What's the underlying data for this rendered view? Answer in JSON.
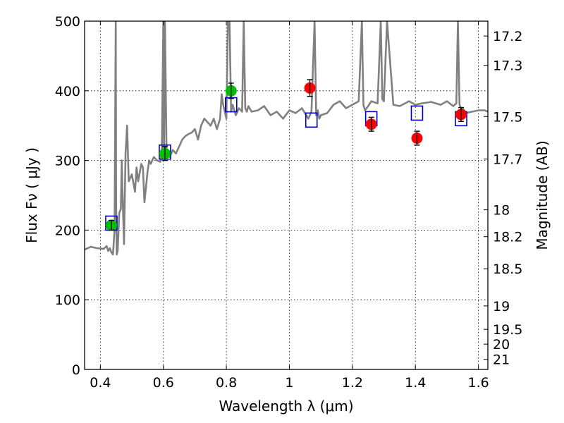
{
  "chart_data": {
    "type": "scatter",
    "xlabel": "Wavelength  λ (μm)",
    "ylabel": "Flux  Fν  ( μJy )",
    "ylabel_right": "Magnitude (AB)",
    "xlim": [
      0.35,
      1.63
    ],
    "ylim": [
      0,
      500
    ],
    "grid": true,
    "x_ticks": [
      0.4,
      0.6,
      0.8,
      1.0,
      1.2,
      1.4,
      1.6
    ],
    "x_tick_labels": [
      "0.4",
      "0.6",
      "0.8",
      "1",
      "1.2",
      "1.4",
      "1.6"
    ],
    "y_ticks": [
      0,
      100,
      200,
      300,
      400,
      500
    ],
    "y_tick_labels": [
      "0",
      "100",
      "200",
      "300",
      "400",
      "500"
    ],
    "right_ticks": [
      {
        "mag": 17.2,
        "label": "17.2"
      },
      {
        "mag": 17.3,
        "label": "17.3"
      },
      {
        "mag": 17.5,
        "label": "17.5"
      },
      {
        "mag": 17.7,
        "label": "17.7"
      },
      {
        "mag": 18.0,
        "label": "18"
      },
      {
        "mag": 18.2,
        "label": "18.2"
      },
      {
        "mag": 18.5,
        "label": "18.5"
      },
      {
        "mag": 19.0,
        "label": "19"
      },
      {
        "mag": 19.5,
        "label": "19.5"
      },
      {
        "mag": 20.0,
        "label": "20"
      },
      {
        "mag": 21.0,
        "label": "21"
      }
    ],
    "series": [
      {
        "kind": "line",
        "color": "#808080",
        "x": [
          0.35,
          0.37,
          0.39,
          0.41,
          0.42,
          0.425,
          0.43,
          0.435,
          0.44,
          0.445,
          0.449,
          0.45,
          0.452,
          0.455,
          0.46,
          0.465,
          0.468,
          0.47,
          0.475,
          0.48,
          0.485,
          0.49,
          0.5,
          0.51,
          0.515,
          0.52,
          0.53,
          0.535,
          0.54,
          0.55,
          0.555,
          0.56,
          0.57,
          0.58,
          0.59,
          0.595,
          0.6,
          0.602,
          0.605,
          0.61,
          0.62,
          0.63,
          0.64,
          0.65,
          0.66,
          0.67,
          0.68,
          0.69,
          0.7,
          0.71,
          0.72,
          0.73,
          0.74,
          0.75,
          0.76,
          0.77,
          0.78,
          0.785,
          0.79,
          0.8,
          0.805,
          0.81,
          0.815,
          0.82,
          0.83,
          0.84,
          0.85,
          0.855,
          0.86,
          0.865,
          0.87,
          0.88,
          0.9,
          0.92,
          0.94,
          0.96,
          0.98,
          1.0,
          1.02,
          1.04,
          1.06,
          1.07,
          1.08,
          1.085,
          1.09,
          1.095,
          1.1,
          1.12,
          1.14,
          1.16,
          1.18,
          1.2,
          1.22,
          1.23,
          1.235,
          1.24,
          1.25,
          1.26,
          1.28,
          1.29,
          1.295,
          1.3,
          1.31,
          1.33,
          1.35,
          1.38,
          1.4,
          1.42,
          1.45,
          1.48,
          1.5,
          1.52,
          1.53,
          1.535,
          1.54,
          1.545,
          1.55,
          1.56,
          1.58,
          1.6,
          1.62,
          1.63
        ],
        "y": [
          172,
          176,
          174,
          173,
          177,
          170,
          174,
          168,
          165,
          200,
          500,
          240,
          165,
          170,
          225,
          230,
          300,
          260,
          180,
          310,
          350,
          270,
          280,
          255,
          290,
          270,
          295,
          290,
          240,
          285,
          300,
          295,
          305,
          300,
          298,
          310,
          500,
          310,
          500,
          312,
          305,
          315,
          310,
          320,
          330,
          335,
          338,
          340,
          345,
          330,
          350,
          360,
          355,
          350,
          360,
          345,
          360,
          395,
          380,
          360,
          500,
          500,
          370,
          380,
          365,
          375,
          370,
          500,
          375,
          370,
          378,
          370,
          372,
          378,
          365,
          370,
          360,
          372,
          368,
          375,
          360,
          370,
          500,
          365,
          372,
          360,
          365,
          368,
          380,
          385,
          375,
          380,
          385,
          500,
          380,
          372,
          378,
          385,
          382,
          500,
          388,
          385,
          500,
          380,
          378,
          385,
          380,
          382,
          384,
          380,
          385,
          378,
          382,
          500,
          380,
          375,
          375,
          368,
          370,
          372,
          372,
          370
        ]
      },
      {
        "kind": "errorbar",
        "marker": "circle",
        "color": "#00c000",
        "points": [
          {
            "x": 0.435,
            "y": 207,
            "err": 7
          },
          {
            "x": 0.605,
            "y": 310,
            "err": 10
          },
          {
            "x": 0.815,
            "y": 400,
            "err": 11
          }
        ]
      },
      {
        "kind": "errorbar",
        "marker": "circle",
        "color": "#ff0000",
        "points": [
          {
            "x": 1.065,
            "y": 404,
            "err": 12
          },
          {
            "x": 1.26,
            "y": 352,
            "err": 10
          },
          {
            "x": 1.405,
            "y": 332,
            "err": 10
          },
          {
            "x": 1.545,
            "y": 366,
            "err": 10
          }
        ]
      },
      {
        "kind": "scatter",
        "marker": "square",
        "color": "#0000cc",
        "points": [
          {
            "x": 0.435,
            "y": 210
          },
          {
            "x": 0.605,
            "y": 312
          },
          {
            "x": 0.815,
            "y": 380
          },
          {
            "x": 1.07,
            "y": 358
          },
          {
            "x": 1.26,
            "y": 360
          },
          {
            "x": 1.405,
            "y": 368
          },
          {
            "x": 1.545,
            "y": 360
          }
        ]
      }
    ]
  }
}
